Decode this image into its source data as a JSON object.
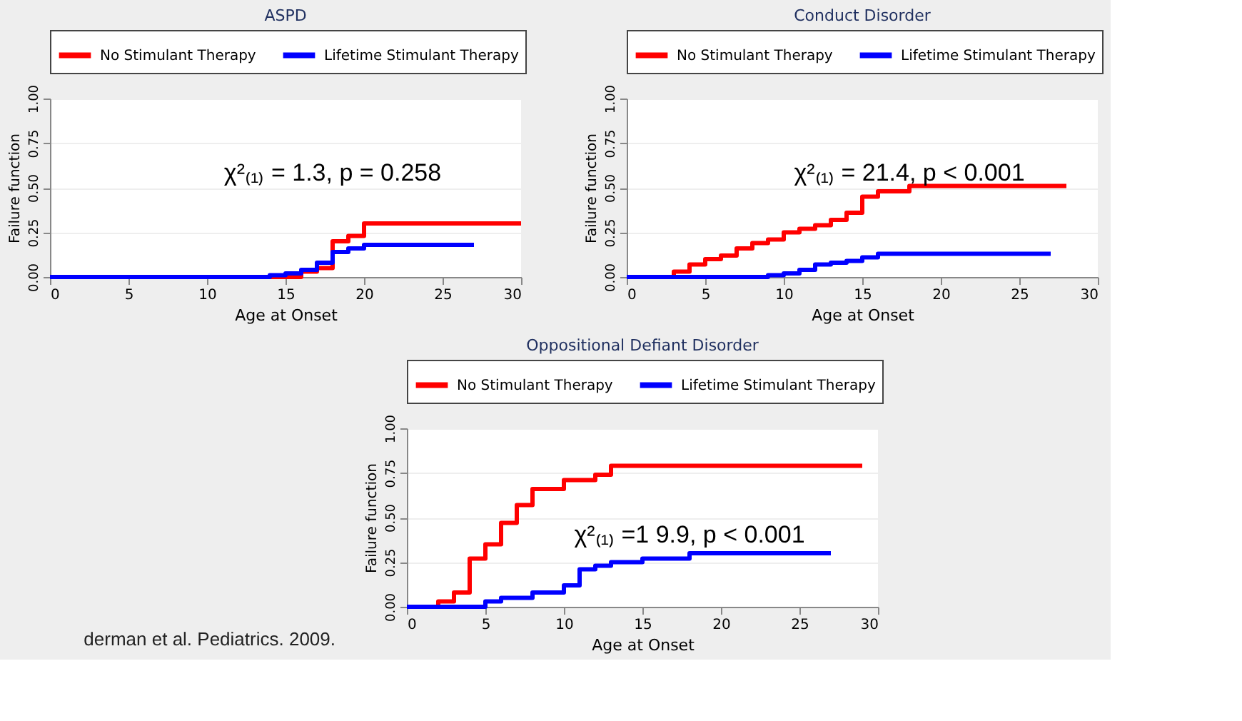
{
  "chart_data": [
    {
      "type": "step",
      "title": "ASPD",
      "xlabel": "Age at Onset",
      "ylabel": "Failure function",
      "xlim": [
        0,
        30
      ],
      "ylim": [
        0,
        1
      ],
      "xticks": [
        0,
        5,
        10,
        15,
        20,
        25,
        30
      ],
      "yticks": [
        {
          "value": 0,
          "label": "0.00"
        },
        {
          "value": 0.25,
          "label": "0.25"
        },
        {
          "value": 0.5,
          "label": "0.50"
        },
        {
          "value": 0.75,
          "label": "0.75"
        },
        {
          "value": 1,
          "label": "1.00"
        }
      ],
      "grid": "y",
      "legend": "top",
      "line_style": "solid",
      "marker": "none",
      "annotations": [
        "χ²₍₁₎ = 1.3, p = 0.258"
      ],
      "series": [
        {
          "name": "No Stimulant Therapy",
          "color": "#ff0000",
          "x": [
            0,
            16,
            17,
            18,
            19,
            20,
            30
          ],
          "values": [
            0,
            0.03,
            0.05,
            0.2,
            0.23,
            0.3,
            0.3
          ]
        },
        {
          "name": "Lifetime Stimulant Therapy",
          "color": "#0000ff",
          "x": [
            0,
            14,
            15,
            16,
            17,
            18,
            19,
            20,
            27
          ],
          "values": [
            0,
            0.01,
            0.02,
            0.04,
            0.08,
            0.14,
            0.16,
            0.18,
            0.18
          ]
        }
      ]
    },
    {
      "type": "step",
      "title": "Conduct Disorder",
      "xlabel": "Age at Onset",
      "ylabel": "Failure function",
      "xlim": [
        0,
        30
      ],
      "ylim": [
        0,
        1
      ],
      "xticks": [
        0,
        5,
        10,
        15,
        20,
        25,
        30
      ],
      "yticks": [
        {
          "value": 0,
          "label": "0.00"
        },
        {
          "value": 0.25,
          "label": "0.25"
        },
        {
          "value": 0.5,
          "label": "0.50"
        },
        {
          "value": 0.75,
          "label": "0.75"
        },
        {
          "value": 1,
          "label": "1.00"
        }
      ],
      "grid": "y",
      "legend": "top",
      "line_style": "solid",
      "marker": "none",
      "annotations": [
        "χ²₍₁₎ = 21.4, p < 0.001"
      ],
      "series": [
        {
          "name": "No Stimulant Therapy",
          "color": "#ff0000",
          "x": [
            0,
            3,
            4,
            5,
            6,
            7,
            8,
            9,
            10,
            11,
            12,
            13,
            14,
            15,
            16,
            18,
            28
          ],
          "values": [
            0,
            0.03,
            0.07,
            0.1,
            0.12,
            0.16,
            0.19,
            0.21,
            0.25,
            0.27,
            0.29,
            0.32,
            0.36,
            0.45,
            0.48,
            0.51,
            0.51
          ]
        },
        {
          "name": "Lifetime Stimulant Therapy",
          "color": "#0000ff",
          "x": [
            0,
            9,
            10,
            11,
            12,
            13,
            14,
            15,
            16,
            27
          ],
          "values": [
            0,
            0.01,
            0.02,
            0.04,
            0.07,
            0.08,
            0.09,
            0.11,
            0.13,
            0.13
          ]
        }
      ]
    },
    {
      "type": "step",
      "title": "Oppositional Defiant Disorder",
      "xlabel": "Age at Onset",
      "ylabel": "Failure function",
      "xlim": [
        0,
        30
      ],
      "ylim": [
        0,
        1
      ],
      "xticks": [
        0,
        5,
        10,
        15,
        20,
        25,
        30
      ],
      "yticks": [
        {
          "value": 0,
          "label": "0.00"
        },
        {
          "value": 0.25,
          "label": "0.25"
        },
        {
          "value": 0.5,
          "label": "0.50"
        },
        {
          "value": 0.75,
          "label": "0.75"
        },
        {
          "value": 1,
          "label": "1.00"
        }
      ],
      "grid": "y",
      "legend": "top",
      "line_style": "solid",
      "marker": "none",
      "annotations": [
        "χ²₍₁₎ =1 9.9, p < 0.001",
        "derman et al. Pediatrics. 2009."
      ],
      "series": [
        {
          "name": "No Stimulant Therapy",
          "color": "#ff0000",
          "x": [
            0,
            2,
            3,
            4,
            5,
            6,
            7,
            8,
            10,
            12,
            13,
            29
          ],
          "values": [
            0,
            0.03,
            0.08,
            0.27,
            0.35,
            0.47,
            0.57,
            0.66,
            0.71,
            0.74,
            0.79,
            0.79
          ]
        },
        {
          "name": "Lifetime Stimulant Therapy",
          "color": "#0000ff",
          "x": [
            0,
            5,
            6,
            8,
            10,
            11,
            12,
            13,
            15,
            18,
            27
          ],
          "values": [
            0,
            0.03,
            0.05,
            0.08,
            0.12,
            0.21,
            0.23,
            0.25,
            0.27,
            0.3,
            0.3
          ]
        }
      ]
    }
  ]
}
